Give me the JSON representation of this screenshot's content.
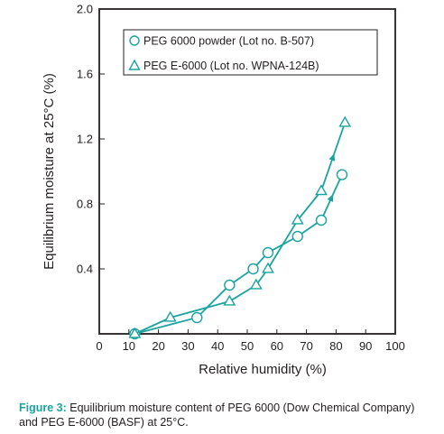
{
  "chart_data": {
    "type": "line",
    "xlabel": "Relative humidity (%)",
    "ylabel": "Equilibrium moisture at 25°C (%)",
    "xlim": [
      0,
      100
    ],
    "ylim": [
      0,
      2.0
    ],
    "x_ticks": [
      0,
      10,
      20,
      30,
      40,
      50,
      60,
      70,
      80,
      90,
      100
    ],
    "y_ticks": [
      0.4,
      0.8,
      1.2,
      1.6,
      2.0
    ],
    "x_tick_labels": [
      "0",
      "10",
      "20",
      "30",
      "40",
      "50",
      "60",
      "70",
      "80",
      "90",
      "100"
    ],
    "y_tick_labels": [
      "0.4",
      "0.8",
      "1.2",
      "1.6",
      "2.0"
    ],
    "grid": false,
    "legend_position": "top-right",
    "line_color": "#1aa3a0",
    "series": [
      {
        "name": "PEG 6000 powder (Lot no. B-507)",
        "marker": "circle",
        "x": [
          12,
          33,
          44,
          52,
          57,
          67,
          75,
          82
        ],
        "y": [
          0.0,
          0.1,
          0.3,
          0.4,
          0.5,
          0.6,
          0.7,
          0.98
        ]
      },
      {
        "name": "PEG E-6000 (Lot no. WPNA-124B)",
        "marker": "triangle",
        "x": [
          12,
          24,
          44,
          53,
          57,
          67,
          75,
          83
        ],
        "y": [
          0.0,
          0.1,
          0.2,
          0.3,
          0.4,
          0.7,
          0.88,
          1.3
        ]
      }
    ],
    "legend_labels": [
      "PEG 6000 powder (Lot no. B-507)",
      "PEG E-6000 (Lot no. WPNA-124B)"
    ]
  },
  "caption": {
    "lead": "Figure 3:",
    "text": " Equilibrium moisture content of PEG 6000 (Dow Chemical Company) and PEG E-6000 (BASF) at 25°C."
  }
}
